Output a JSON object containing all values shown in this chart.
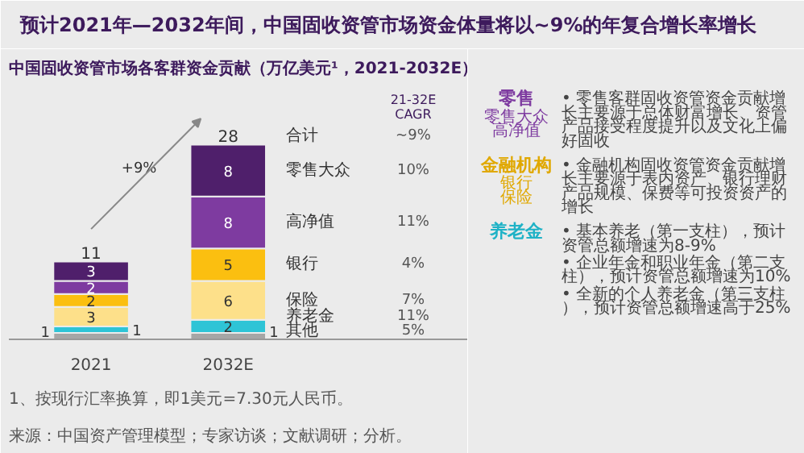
{
  "chart_data": {
    "type": "bar",
    "stacked": true,
    "data_labels": true,
    "title": "预计2021年—2032年间，中国固收资管市场资金体量将以~9%的年复合增长率增长",
    "subtitle": "中国固收资管市场各客群资金贡献（万亿美元¹，2021-2032E）",
    "categories": [
      "2021",
      "2032E"
    ],
    "series": [
      {
        "name": "其他",
        "color": "#a6a6a6",
        "values": [
          1,
          1
        ]
      },
      {
        "name": "养老金",
        "color": "#2ec4d6",
        "values": [
          1,
          2
        ]
      },
      {
        "name": "保险",
        "color": "#fde08a",
        "values": [
          3,
          6
        ]
      },
      {
        "name": "银行",
        "color": "#fbbf10",
        "values": [
          2,
          5
        ]
      },
      {
        "name": "高净值",
        "color": "#7e3ba0",
        "values": [
          2,
          8
        ]
      },
      {
        "name": "零售大众",
        "color": "#4f1f6b",
        "values": [
          3,
          8
        ]
      }
    ],
    "totals": [
      "11",
      "28"
    ],
    "annotations": [
      "合计",
      "21-32E\nCAGR",
      "~9%",
      "10%",
      "11%",
      "4%",
      "7%",
      "11%",
      "5%",
      "+9%",
      "来源：中国资产管理模型；专家访谈；文献调研；分析。",
      "1、按现行汇率换算，即1美元=7.30元人民币。",
      "零售",
      "零售大众高净值",
      "• 零售客群固收资管资金贡献增长主要源于总体财富增长、资管产品接受程度提升以及文化上偏好固收",
      "金融机构",
      "银行保险",
      "• 金融机构固收资管资金贡献增长主要源于表内资产、银行理财产品规模、保费等可投资资产的增长",
      "养老金",
      "• 基本养老（第一支柱），预计资管总额增速为8-9%",
      "• 企业年金和职业年金（第二支柱），预计资管总额增速为10%",
      "• 全新的个人养老金（第三支柱），预计资管总额增速高于25%"
    ]
  }
}
